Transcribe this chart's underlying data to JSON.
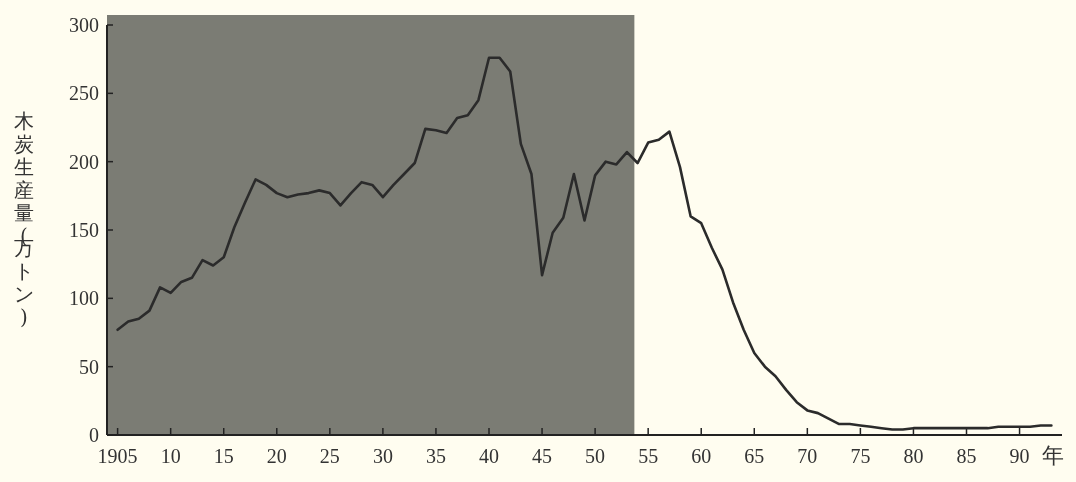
{
  "chart_data": {
    "type": "line",
    "xlabel": "年",
    "ylabel": "木炭生産量(万トン)",
    "color": "#2b2b2b",
    "x": [
      1905,
      1906,
      1907,
      1908,
      1909,
      1910,
      1911,
      1912,
      1913,
      1914,
      1915,
      1916,
      1917,
      1918,
      1919,
      1920,
      1921,
      1922,
      1923,
      1924,
      1925,
      1926,
      1927,
      1928,
      1929,
      1930,
      1931,
      1932,
      1933,
      1934,
      1935,
      1936,
      1937,
      1938,
      1939,
      1940,
      1941,
      1942,
      1943,
      1944,
      1945,
      1946,
      1947,
      1948,
      1949,
      1950,
      1951,
      1952,
      1953,
      1954,
      1955,
      1956,
      1957,
      1958,
      1959,
      1960,
      1961,
      1962,
      1963,
      1964,
      1965,
      1966,
      1967,
      1968,
      1969,
      1970,
      1971,
      1972,
      1973,
      1974,
      1975,
      1976,
      1977,
      1978,
      1979,
      1980,
      1981,
      1982,
      1983,
      1984,
      1985,
      1986,
      1987,
      1988,
      1989,
      1990,
      1991,
      1992,
      1993
    ],
    "values": [
      77,
      83,
      85,
      91,
      108,
      104,
      112,
      115,
      128,
      124,
      130,
      152,
      170,
      187,
      183,
      177,
      174,
      176,
      177,
      179,
      177,
      168,
      177,
      185,
      183,
      174,
      183,
      191,
      199,
      224,
      223,
      221,
      232,
      234,
      245,
      276,
      276,
      266,
      213,
      191,
      117,
      148,
      159,
      191,
      157,
      190,
      200,
      198,
      207,
      199,
      214,
      216,
      222,
      196,
      160,
      155,
      137,
      121,
      97,
      77,
      60,
      50,
      43,
      33,
      24,
      18,
      16,
      12,
      8,
      8,
      7,
      6,
      5,
      4,
      4,
      5,
      5,
      5,
      5,
      5,
      5,
      5,
      5,
      6,
      6,
      6,
      6,
      7,
      7
    ],
    "xlim": [
      1904,
      1994
    ],
    "ylim": [
      0,
      300
    ],
    "xticks": [
      {
        "value": 1905,
        "label": "1905"
      },
      {
        "value": 1910,
        "label": "10"
      },
      {
        "value": 1915,
        "label": "15"
      },
      {
        "value": 1920,
        "label": "20"
      },
      {
        "value": 1925,
        "label": "25"
      },
      {
        "value": 1930,
        "label": "30"
      },
      {
        "value": 1935,
        "label": "35"
      },
      {
        "value": 1940,
        "label": "40"
      },
      {
        "value": 1945,
        "label": "45"
      },
      {
        "value": 1950,
        "label": "50"
      },
      {
        "value": 1955,
        "label": "55"
      },
      {
        "value": 1960,
        "label": "60"
      },
      {
        "value": 1965,
        "label": "65"
      },
      {
        "value": 1970,
        "label": "70"
      },
      {
        "value": 1975,
        "label": "75"
      },
      {
        "value": 1980,
        "label": "80"
      },
      {
        "value": 1985,
        "label": "85"
      },
      {
        "value": 1990,
        "label": "90"
      }
    ],
    "yticks": [
      0,
      50,
      100,
      150,
      200,
      250,
      300
    ],
    "bands": [
      {
        "axis": "x",
        "from": 1904,
        "to": 1953.7,
        "color": "#7b7c74"
      }
    ]
  }
}
